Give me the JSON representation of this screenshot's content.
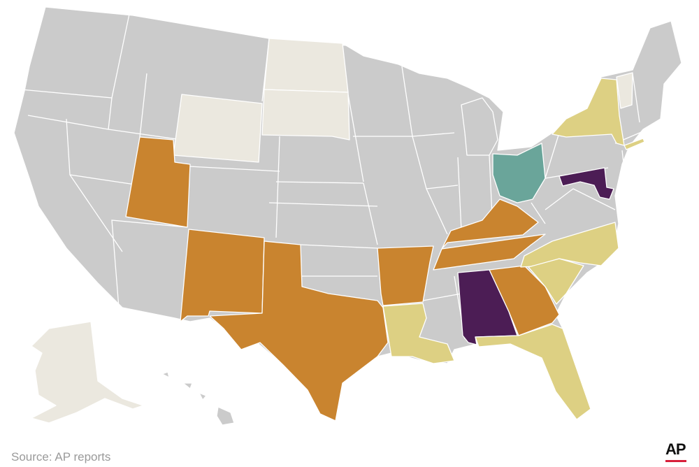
{
  "source": "Source: AP reports",
  "logo": "AP"
}
